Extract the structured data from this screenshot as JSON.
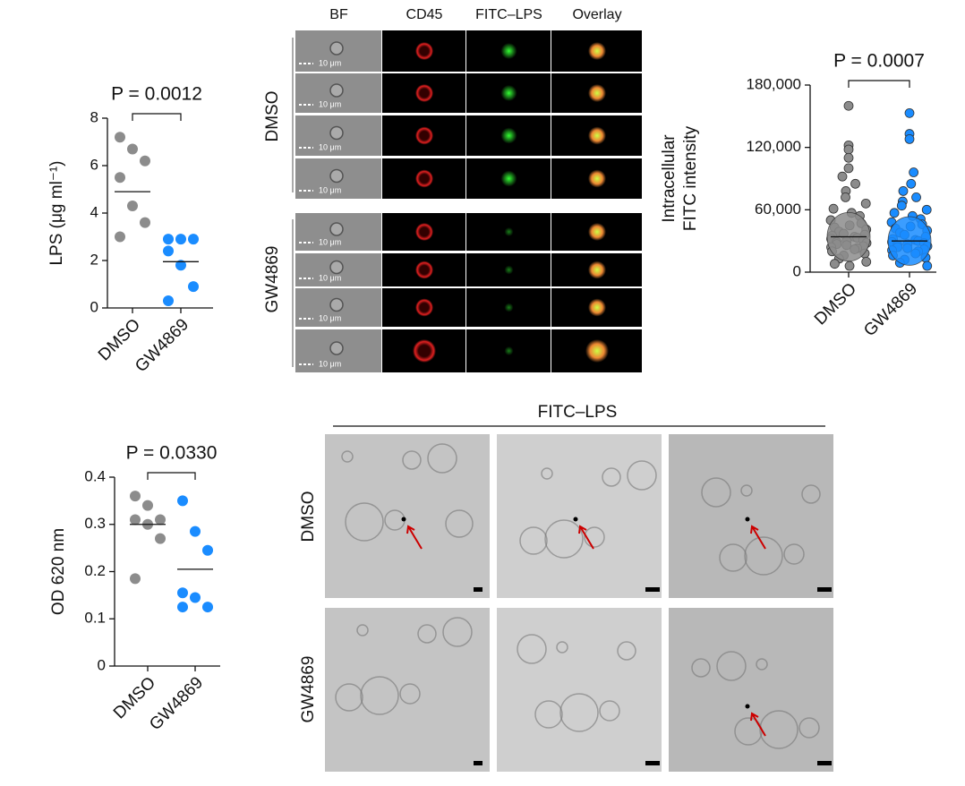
{
  "chart_data": [
    {
      "type": "strip",
      "ylabel": [
        "LPS (μg ml⁻¹)"
      ],
      "annotation": "P = 0.0012",
      "categories": [
        "DMSO",
        "GW4869"
      ],
      "groups": [
        {
          "color": "#8c8c8c",
          "values": [
            7.2,
            6.7,
            6.2,
            5.5,
            4.3,
            3.6,
            3.0
          ],
          "mean": 4.9
        },
        {
          "color": "#1a8cff",
          "values": [
            2.9,
            2.9,
            2.9,
            2.4,
            1.8,
            0.9,
            0.3
          ],
          "mean": 1.95
        }
      ],
      "ylim": [
        0,
        8
      ],
      "yticks": [
        0,
        2,
        4,
        6,
        8
      ]
    },
    {
      "type": "strip",
      "ylabel": [
        "OD 620 nm"
      ],
      "annotation": "P = 0.0330",
      "categories": [
        "DMSO",
        "GW4869"
      ],
      "groups": [
        {
          "color": "#8c8c8c",
          "values": [
            0.36,
            0.34,
            0.31,
            0.31,
            0.3,
            0.27,
            0.185
          ],
          "mean": 0.3
        },
        {
          "color": "#1a8cff",
          "values": [
            0.35,
            0.285,
            0.245,
            0.155,
            0.145,
            0.125,
            0.125
          ],
          "mean": 0.205
        }
      ],
      "ylim": [
        0,
        0.4
      ],
      "yticks": [
        0,
        0.1,
        0.2,
        0.3,
        0.4
      ]
    },
    {
      "type": "swarm",
      "ylabel": [
        "Intracellular",
        "FITC intensity"
      ],
      "annotation": "P = 0.0007",
      "categories": [
        "DMSO",
        "GW4869"
      ],
      "groups": [
        {
          "color": "#8c8c8c",
          "values": [
            160000,
            122000,
            118000,
            110000,
            100000,
            92000,
            85000,
            78000,
            72000,
            66000,
            61000,
            57000,
            54000,
            50000,
            47000,
            45000,
            43000,
            41000,
            39000,
            37000,
            36000,
            35000,
            34000,
            33000,
            32000,
            31000,
            30000,
            29000,
            28000,
            27000,
            26000,
            25000,
            24000,
            23000,
            22000,
            20000,
            18000,
            16000,
            13000,
            10000,
            8000,
            6000
          ],
          "mean": 34000
        },
        {
          "color": "#1a8cff",
          "values": [
            153000,
            133000,
            128000,
            96000,
            85000,
            78000,
            72000,
            68000,
            64000,
            60000,
            57000,
            54000,
            51000,
            48000,
            46000,
            44000,
            42000,
            40000,
            38000,
            36000,
            34000,
            32000,
            31000,
            30000,
            29000,
            28000,
            27000,
            26000,
            25000,
            24000,
            23000,
            22000,
            21000,
            20000,
            18000,
            16000,
            14000,
            12000,
            9000,
            6000
          ],
          "mean": 30000
        }
      ],
      "ylim": [
        0,
        180000
      ],
      "yticks": [
        0,
        {
          "value": 60000,
          "label": "60,000"
        },
        {
          "value": 120000,
          "label": "120,000"
        },
        {
          "value": 180000,
          "label": "180,000"
        }
      ]
    }
  ],
  "microscopy": {
    "columns": [
      "BF",
      "CD45",
      "FITC–LPS",
      "Overlay"
    ],
    "rows": [
      "DMSO",
      "GW4869"
    ],
    "scale_bar": "10 μm"
  },
  "em": {
    "title": "FITC–LPS",
    "rows": [
      "DMSO",
      "GW4869"
    ]
  }
}
